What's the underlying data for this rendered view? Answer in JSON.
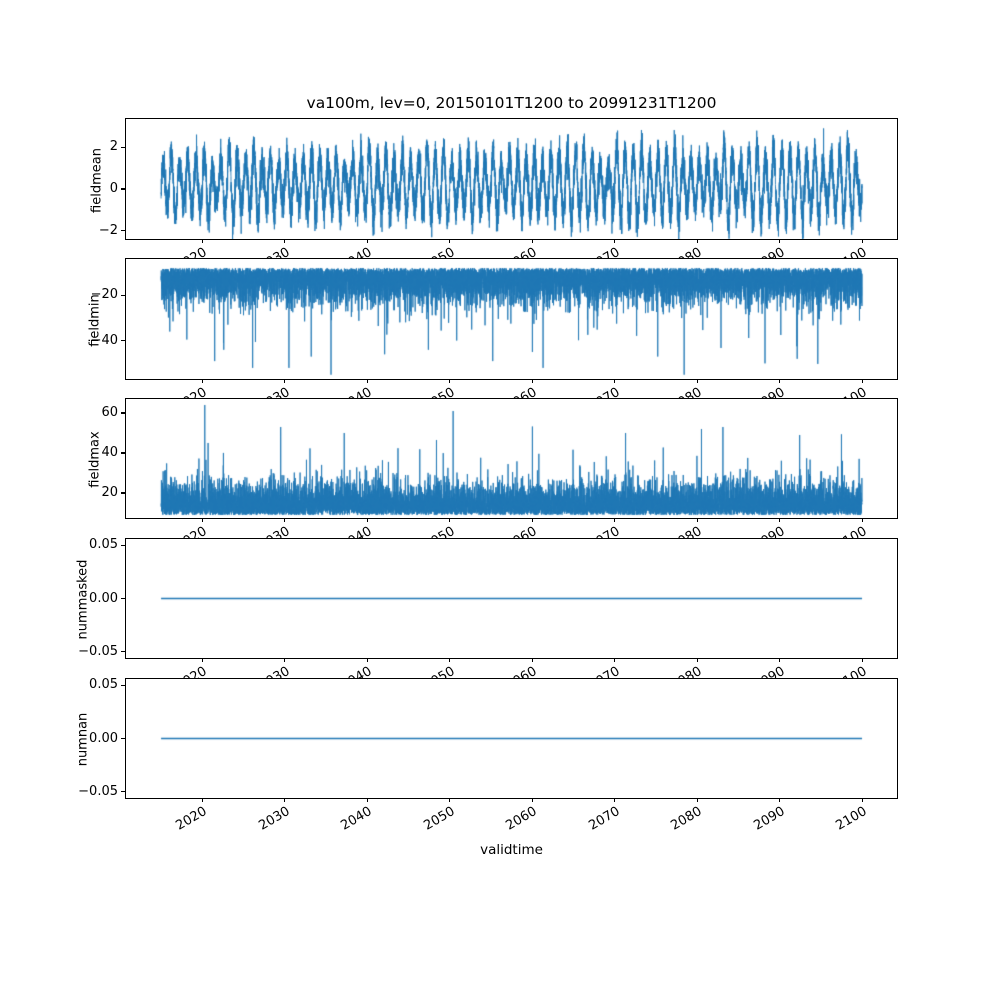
{
  "colors": {
    "line": "#1f77b4",
    "background": "#ffffff",
    "text": "#000000"
  },
  "chart_data": {
    "type": "line",
    "title": "va100m, lev=0, 20150101T1200 to 20991231T1200",
    "xlabel": "validtime",
    "legend": "none",
    "grid": false,
    "x": {
      "lim": [
        2010.75,
        2104.2
      ],
      "ticks": [
        2020,
        2030,
        2040,
        2050,
        2060,
        2070,
        2080,
        2090,
        2100
      ],
      "tick_labels": [
        "2020",
        "2030",
        "2040",
        "2050",
        "2060",
        "2070",
        "2080",
        "2090",
        "2100"
      ],
      "tick_rotation_deg": 30,
      "data_range": [
        2015.0,
        2099.96
      ]
    },
    "subplots": [
      {
        "name": "fieldmean",
        "ylabel": "fieldmean",
        "ylim": [
          -2.4,
          3.35
        ],
        "ytick_values": [
          2,
          0,
          -2
        ],
        "ytick_labels": [
          "2",
          "0",
          "−2"
        ],
        "series": {
          "kind": "seasonal_noise",
          "mean": 0.2,
          "annual_amp": [
            0.8,
            1.8
          ],
          "noise_sd": 0.4,
          "samples_per_year": 120,
          "approx_range": [
            -2.35,
            2.9
          ],
          "notable_points": [
            {
              "x": 2019.3,
              "y": 2.6
            },
            {
              "x": 2095.3,
              "y": 2.9
            }
          ]
        }
      },
      {
        "name": "fieldmin",
        "ylabel": "fieldmin",
        "ylim": [
          -56.9,
          -4.0
        ],
        "ytick_values": [
          -20,
          -40
        ],
        "ytick_labels": [
          "−20",
          "−40"
        ],
        "series": {
          "kind": "half_normal_spikes",
          "direction": -1,
          "base": -8,
          "spread": 7,
          "spike_prob": 0.006,
          "spike_mag": [
            8,
            26
          ],
          "clamp": [
            -56,
            -8
          ],
          "samples_per_year": 120,
          "approx_range": [
            -55,
            -8
          ],
          "notable_points": [
            {
              "x": 2021.5,
              "y": -49
            },
            {
              "x": 2022.6,
              "y": -44
            },
            {
              "x": 2026.1,
              "y": -52
            },
            {
              "x": 2030.5,
              "y": -52
            },
            {
              "x": 2033.2,
              "y": -47
            },
            {
              "x": 2035.6,
              "y": -55
            },
            {
              "x": 2042.1,
              "y": -46
            },
            {
              "x": 2047.4,
              "y": -44
            },
            {
              "x": 2055.2,
              "y": -49
            },
            {
              "x": 2061.3,
              "y": -52
            },
            {
              "x": 2075.2,
              "y": -47
            },
            {
              "x": 2078.4,
              "y": -55
            },
            {
              "x": 2088.2,
              "y": -50
            },
            {
              "x": 2092.1,
              "y": -48
            }
          ]
        }
      },
      {
        "name": "fieldmax",
        "ylabel": "fieldmax",
        "ylim": [
          7.5,
          67
        ],
        "ytick_values": [
          60,
          40,
          20
        ],
        "ytick_labels": [
          "60",
          "40",
          "20"
        ],
        "series": {
          "kind": "half_normal_spikes",
          "direction": 1,
          "base": 9,
          "spread": 7.5,
          "spike_prob": 0.006,
          "spike_mag": [
            8,
            26
          ],
          "clamp": [
            9,
            64
          ],
          "samples_per_year": 120,
          "approx_range": [
            9,
            64
          ],
          "notable_points": [
            {
              "x": 2020.3,
              "y": 64
            },
            {
              "x": 2029.5,
              "y": 53
            },
            {
              "x": 2050.4,
              "y": 61
            },
            {
              "x": 2037.2,
              "y": 50
            },
            {
              "x": 2071.3,
              "y": 50
            },
            {
              "x": 2080.5,
              "y": 52
            },
            {
              "x": 2083.1,
              "y": 53
            },
            {
              "x": 2092.4,
              "y": 49
            }
          ]
        }
      },
      {
        "name": "nummasked",
        "ylabel": "nummasked",
        "ylim": [
          -0.0561,
          0.0561
        ],
        "ytick_values": [
          0.05,
          0.0,
          -0.05
        ],
        "ytick_labels": [
          "0.05",
          "0.00",
          "−0.05"
        ],
        "series": {
          "kind": "constant",
          "value": 0.0,
          "approx_range": [
            0.0,
            0.0
          ]
        }
      },
      {
        "name": "numnan",
        "ylabel": "numnan",
        "ylim": [
          -0.0561,
          0.0561
        ],
        "ytick_values": [
          0.05,
          0.0,
          -0.05
        ],
        "ytick_labels": [
          "0.05",
          "0.00",
          "−0.05"
        ],
        "series": {
          "kind": "constant",
          "value": 0.0,
          "approx_range": [
            0.0,
            0.0
          ]
        }
      }
    ]
  }
}
